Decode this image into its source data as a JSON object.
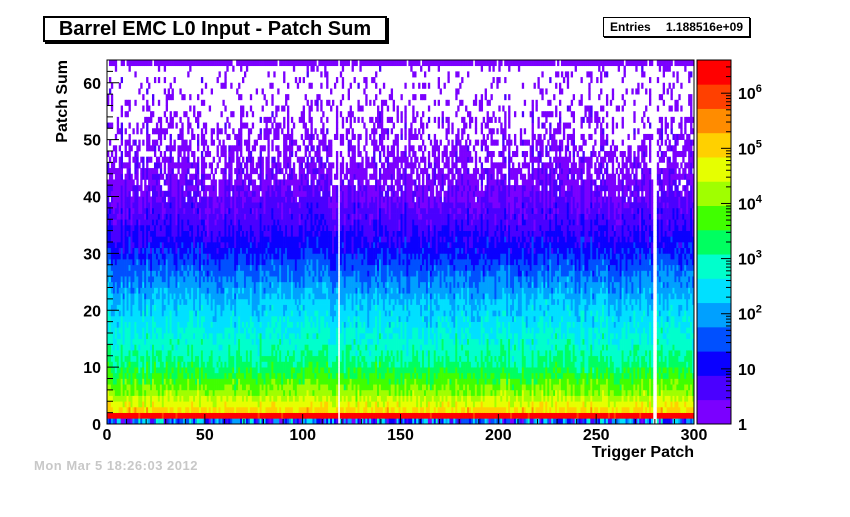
{
  "title": "Barrel EMC L0 Input - Patch Sum",
  "stats": {
    "label": "Entries",
    "value": "1.188516e+09"
  },
  "footer_ghost": "Mon Mar  5 18:26:03 2012",
  "chart_data": {
    "type": "heatmap",
    "title": "Barrel EMC L0 Input - Patch Sum",
    "xlabel": "Trigger Patch",
    "ylabel": "Patch Sum",
    "xlim": [
      0,
      300
    ],
    "ylim": [
      0,
      64
    ],
    "x_ticks": [
      0,
      50,
      100,
      150,
      200,
      250,
      300
    ],
    "y_ticks": [
      0,
      10,
      20,
      30,
      40,
      50,
      60
    ],
    "z_scale": "log",
    "zlim": [
      1,
      4000000
    ],
    "z_ticks": [
      {
        "value": 1,
        "label": "1"
      },
      {
        "value": 10,
        "label": "10"
      },
      {
        "value": 100,
        "label": "10",
        "exp": "2"
      },
      {
        "value": 1000,
        "label": "10",
        "exp": "3"
      },
      {
        "value": 10000,
        "label": "10",
        "exp": "4"
      },
      {
        "value": 100000,
        "label": "10",
        "exp": "5"
      },
      {
        "value": 1000000,
        "label": "10",
        "exp": "6"
      }
    ],
    "x_bins": 300,
    "y_bins": 64,
    "description_profile": [
      {
        "y": 0,
        "count": 100
      },
      {
        "y": 1,
        "count": 3000000
      },
      {
        "y": 2,
        "count": 80000
      },
      {
        "y": 5,
        "count": 12000
      },
      {
        "y": 10,
        "count": 1500
      },
      {
        "y": 15,
        "count": 500
      },
      {
        "y": 20,
        "count": 200
      },
      {
        "y": 25,
        "count": 60
      },
      {
        "y": 30,
        "count": 15
      },
      {
        "y": 35,
        "count": 5
      },
      {
        "y": 40,
        "count": 2.5
      },
      {
        "y": 45,
        "count": 1.6
      },
      {
        "y": 50,
        "count": 1.3
      },
      {
        "y": 55,
        "count": 1.1
      },
      {
        "y": 62,
        "count": 1.2
      }
    ],
    "dead_patches": [
      118,
      279,
      280
    ],
    "grid": false,
    "colors": {
      "palette": [
        "#7b00ff",
        "#4a00ff",
        "#0a00ff",
        "#0050ff",
        "#00a0ff",
        "#00e0ff",
        "#00ffcc",
        "#00ff60",
        "#40ff00",
        "#a0ff00",
        "#e6ff00",
        "#ffd000",
        "#ff8c00",
        "#ff4000",
        "#ff0000"
      ]
    }
  }
}
